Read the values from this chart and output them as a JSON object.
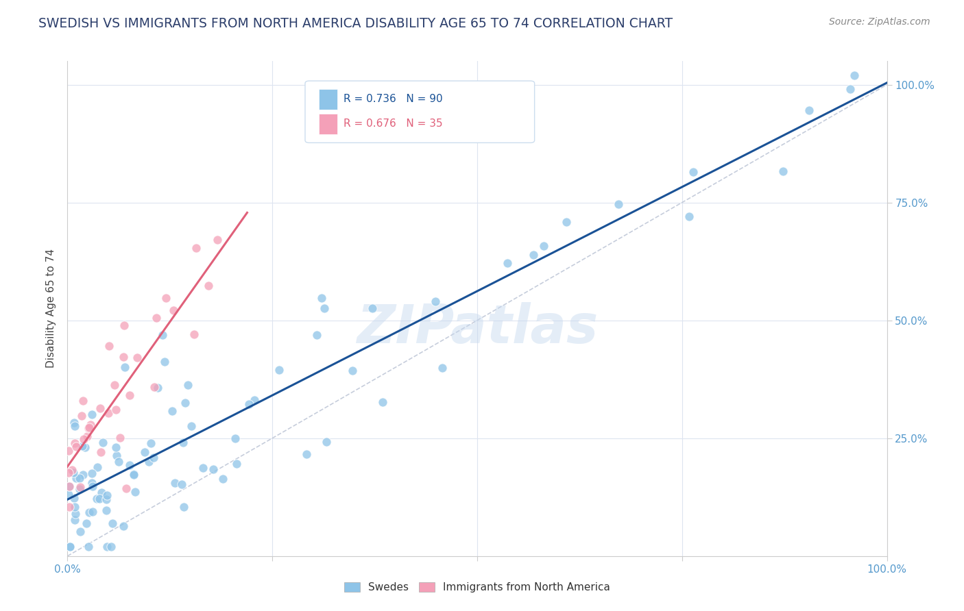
{
  "title": "SWEDISH VS IMMIGRANTS FROM NORTH AMERICA DISABILITY AGE 65 TO 74 CORRELATION CHART",
  "source": "Source: ZipAtlas.com",
  "ylabel": "Disability Age 65 to 74",
  "watermark": "ZIPatlas",
  "r_swedes": 0.736,
  "n_swedes": 90,
  "r_immigrants": 0.676,
  "n_immigrants": 35,
  "color_swedes": "#8ec4e8",
  "color_immigrants": "#f4a0b8",
  "line_color_swedes": "#1a5296",
  "line_color_immigrants": "#e0607a",
  "bg_color": "#ffffff",
  "grid_color": "#dde4f0",
  "title_color": "#2c3e6b",
  "source_color": "#888888",
  "axis_label_color": "#5599cc",
  "ylabel_color": "#444444"
}
